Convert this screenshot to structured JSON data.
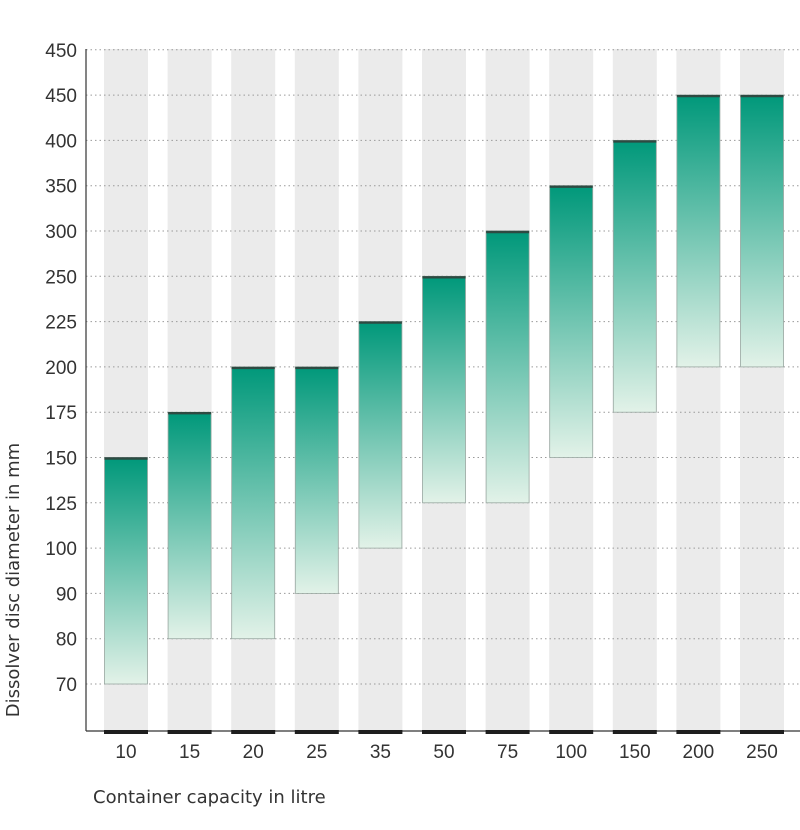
{
  "chart_data": {
    "type": "floating-bar",
    "title": "",
    "xlabel": "Container capacity in litre",
    "ylabel": "Dissolver disc diameter in mm",
    "yticks": [
      "70",
      "80",
      "90",
      "100",
      "125",
      "150",
      "175",
      "200",
      "225",
      "250",
      "300",
      "350",
      "400",
      "450",
      "450"
    ],
    "categories": [
      "10",
      "15",
      "20",
      "25",
      "35",
      "50",
      "75",
      "100",
      "150",
      "200",
      "250"
    ],
    "ranges": [
      [
        "70",
        "150"
      ],
      [
        "80",
        "175"
      ],
      [
        "80",
        "200"
      ],
      [
        "90",
        "200"
      ],
      [
        "100",
        "225"
      ],
      [
        "125",
        "250"
      ],
      [
        "125",
        "300"
      ],
      [
        "150",
        "350"
      ],
      [
        "175",
        "400"
      ],
      [
        "200",
        "450"
      ],
      [
        "200",
        "450"
      ]
    ],
    "grid": true,
    "colors": {
      "bar_top": "#00987a",
      "bar_bottom": "#e2f2e8",
      "column_background": "#ebebeb",
      "grid": "#9a9a9a",
      "axis": "#333333",
      "base_mark": "#1e1e1e"
    }
  }
}
